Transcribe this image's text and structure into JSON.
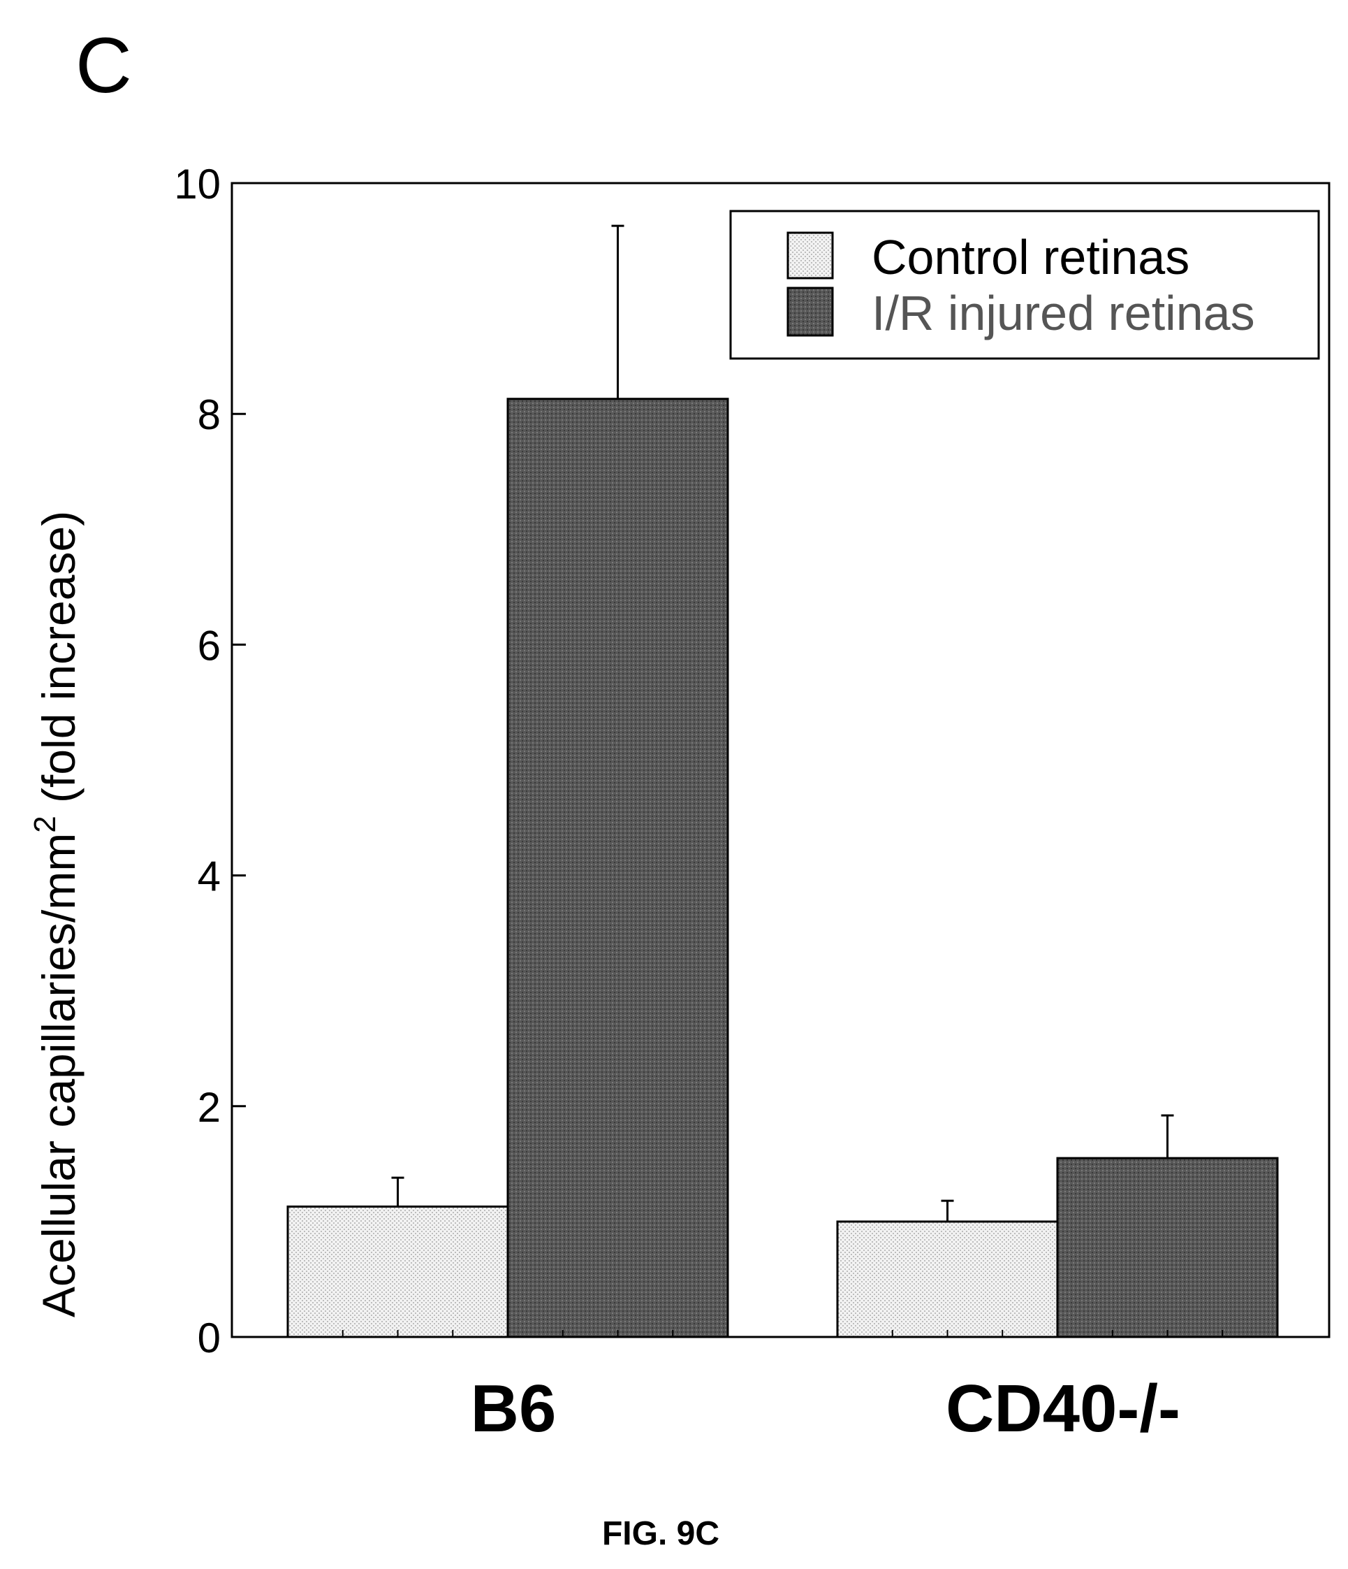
{
  "panel_label": "C",
  "figure_caption": "FIG. 9C",
  "chart_data": {
    "type": "bar",
    "categories": [
      "B6",
      "CD40-/-"
    ],
    "series": [
      {
        "name": "Control retinas",
        "values": [
          1.13,
          1.0
        ],
        "errors": [
          0.25,
          0.18
        ],
        "color": "#eeeeee"
      },
      {
        "name": "I/R injured retinas",
        "values": [
          8.13,
          1.55
        ],
        "errors": [
          1.5,
          0.37
        ],
        "color": "#5c5c5c"
      }
    ],
    "ylabel": "Acellular capillaries/mm",
    "ylabel_superscript": "2",
    "ylabel_suffix": " (fold increase)",
    "xlabel": "",
    "ylim": [
      0,
      10
    ],
    "yticks": [
      "0",
      "2",
      "4",
      "6",
      "8",
      "10"
    ],
    "legend_position": "top-right",
    "grid": false
  }
}
